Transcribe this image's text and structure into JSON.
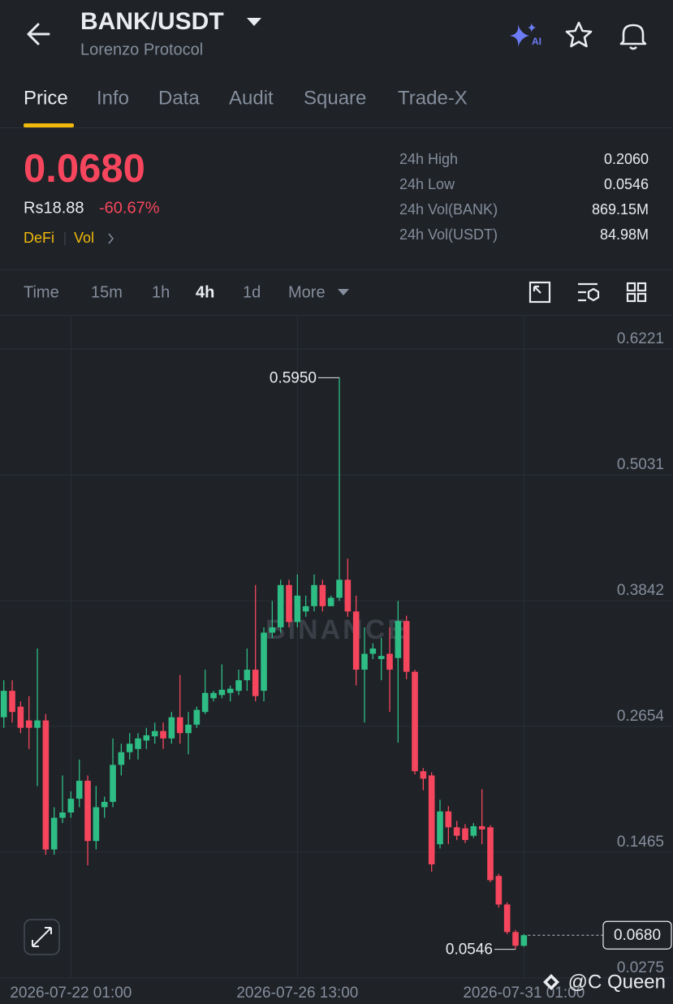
{
  "header": {
    "title": "BANK/USDT",
    "subtitle": "Lorenzo Protocol",
    "ai_badge": "AI"
  },
  "tabs": [
    "Price",
    "Info",
    "Data",
    "Audit",
    "Square",
    "Trade-X"
  ],
  "ticker": {
    "price": "0.0680",
    "local_price": "Rs18.88",
    "change": "-60.67%",
    "tags": [
      "DeFi",
      "Vol"
    ],
    "stats": [
      {
        "label": "24h High",
        "value": "0.2060"
      },
      {
        "label": "24h Low",
        "value": "0.0546"
      },
      {
        "label": "24h Vol(BANK)",
        "value": "869.15M"
      },
      {
        "label": "24h Vol(USDT)",
        "value": "84.98M"
      }
    ]
  },
  "intervals": [
    "Time",
    "15m",
    "1h",
    "4h",
    "1d",
    "More"
  ],
  "chart_data": {
    "type": "candlestick",
    "x": [
      "2026-07-20 17:00",
      "2026-07-20 21:00",
      "2026-07-21 01:00",
      "2026-07-21 05:00",
      "2026-07-21 09:00",
      "2026-07-21 13:00",
      "2026-07-21 17:00",
      "2026-07-21 21:00",
      "2026-07-22 01:00",
      "2026-07-22 05:00",
      "2026-07-22 09:00",
      "2026-07-22 13:00",
      "2026-07-22 17:00",
      "2026-07-22 21:00",
      "2026-07-23 01:00",
      "2026-07-23 05:00",
      "2026-07-23 09:00",
      "2026-07-23 13:00",
      "2026-07-23 17:00",
      "2026-07-23 21:00",
      "2026-07-24 01:00",
      "2026-07-24 05:00",
      "2026-07-24 09:00",
      "2026-07-24 13:00",
      "2026-07-24 17:00",
      "2026-07-24 21:00",
      "2026-07-25 01:00",
      "2026-07-25 05:00",
      "2026-07-25 09:00",
      "2026-07-25 13:00",
      "2026-07-25 17:00",
      "2026-07-25 21:00",
      "2026-07-26 01:00",
      "2026-07-26 05:00",
      "2026-07-26 09:00",
      "2026-07-26 13:00",
      "2026-07-26 17:00",
      "2026-07-26 21:00",
      "2026-07-27 01:00",
      "2026-07-27 05:00",
      "2026-07-27 09:00",
      "2026-07-27 13:00",
      "2026-07-27 17:00",
      "2026-07-27 21:00",
      "2026-07-28 01:00",
      "2026-07-28 05:00",
      "2026-07-28 09:00",
      "2026-07-28 13:00",
      "2026-07-28 17:00",
      "2026-07-28 21:00",
      "2026-07-29 01:00",
      "2026-07-29 05:00",
      "2026-07-29 09:00",
      "2026-07-29 13:00",
      "2026-07-29 17:00",
      "2026-07-29 21:00",
      "2026-07-30 01:00",
      "2026-07-30 05:00",
      "2026-07-30 09:00",
      "2026-07-30 13:00",
      "2026-07-30 17:00",
      "2026-07-30 21:00",
      "2026-07-31 01:00"
    ],
    "open": [
      0.274,
      0.299,
      0.284,
      0.271,
      0.264,
      0.271,
      0.149,
      0.179,
      0.184,
      0.197,
      0.214,
      0.157,
      0.189,
      0.194,
      0.229,
      0.241,
      0.244,
      0.252,
      0.256,
      0.261,
      0.254,
      0.274,
      0.259,
      0.267,
      0.279,
      0.292,
      0.295,
      0.297,
      0.299,
      0.309,
      0.319,
      0.299,
      0.354,
      0.359,
      0.399,
      0.364,
      0.374,
      0.379,
      0.399,
      0.379,
      0.387,
      0.404,
      0.374,
      0.319,
      0.334,
      0.329,
      0.334,
      0.33,
      0.365,
      0.317,
      0.223,
      0.219,
      0.154,
      0.185,
      0.17,
      0.169,
      0.162,
      0.171,
      0.17,
      0.124,
      0.097,
      0.071,
      0.058
    ],
    "high": [
      0.309,
      0.309,
      0.289,
      0.294,
      0.339,
      0.277,
      0.189,
      0.219,
      0.204,
      0.234,
      0.219,
      0.209,
      0.199,
      0.254,
      0.249,
      0.259,
      0.259,
      0.264,
      0.269,
      0.269,
      0.279,
      0.314,
      0.279,
      0.284,
      0.319,
      0.299,
      0.324,
      0.304,
      0.319,
      0.339,
      0.399,
      0.359,
      0.384,
      0.404,
      0.404,
      0.409,
      0.389,
      0.409,
      0.404,
      0.389,
      0.595,
      0.424,
      0.389,
      0.359,
      0.344,
      0.349,
      0.359,
      0.384,
      0.37,
      0.319,
      0.226,
      0.222,
      0.196,
      0.19,
      0.176,
      0.173,
      0.174,
      0.206,
      0.172,
      0.126,
      0.099,
      0.073,
      0.069
    ],
    "low": [
      0.264,
      0.269,
      0.259,
      0.244,
      0.209,
      0.144,
      0.144,
      0.174,
      0.179,
      0.189,
      0.134,
      0.149,
      0.179,
      0.189,
      0.219,
      0.234,
      0.234,
      0.244,
      0.249,
      0.244,
      0.249,
      0.249,
      0.239,
      0.264,
      0.277,
      0.289,
      0.292,
      0.289,
      0.295,
      0.299,
      0.289,
      0.289,
      0.349,
      0.354,
      0.359,
      0.359,
      0.369,
      0.374,
      0.374,
      0.379,
      0.384,
      0.369,
      0.304,
      0.269,
      0.329,
      0.309,
      0.279,
      0.25,
      0.31,
      0.22,
      0.205,
      0.128,
      0.15,
      0.154,
      0.158,
      0.155,
      0.16,
      0.154,
      0.118,
      0.094,
      0.069,
      0.0546,
      0.057
    ],
    "close": [
      0.299,
      0.279,
      0.264,
      0.264,
      0.271,
      0.149,
      0.179,
      0.184,
      0.197,
      0.214,
      0.157,
      0.189,
      0.194,
      0.229,
      0.241,
      0.249,
      0.254,
      0.257,
      0.261,
      0.254,
      0.274,
      0.259,
      0.267,
      0.281,
      0.297,
      0.297,
      0.3,
      0.301,
      0.309,
      0.319,
      0.294,
      0.354,
      0.359,
      0.399,
      0.364,
      0.389,
      0.379,
      0.399,
      0.379,
      0.387,
      0.404,
      0.374,
      0.319,
      0.334,
      0.339,
      0.332,
      0.319,
      0.365,
      0.317,
      0.223,
      0.216,
      0.135,
      0.185,
      0.17,
      0.162,
      0.158,
      0.171,
      0.168,
      0.12,
      0.097,
      0.071,
      0.058,
      0.068
    ],
    "up_color": "#2ebd85",
    "down_color": "#f6465d",
    "ylim": [
      0.0275,
      0.6528
    ],
    "yticks": [
      0.6221,
      0.5031,
      0.3842,
      0.2654,
      0.1465,
      0.0275
    ],
    "xticks": [
      "2026-07-22 01:00",
      "2026-07-26 13:00",
      "2026-07-31 01:00"
    ],
    "grid": true,
    "annotations": {
      "high": {
        "value": 0.595,
        "label": "0.5950"
      },
      "low": {
        "value": 0.0546,
        "label": "0.0546"
      },
      "last": {
        "value": 0.068,
        "label": "0.0680"
      }
    }
  },
  "watermark": "BINANCE",
  "credit": "@C Queen"
}
